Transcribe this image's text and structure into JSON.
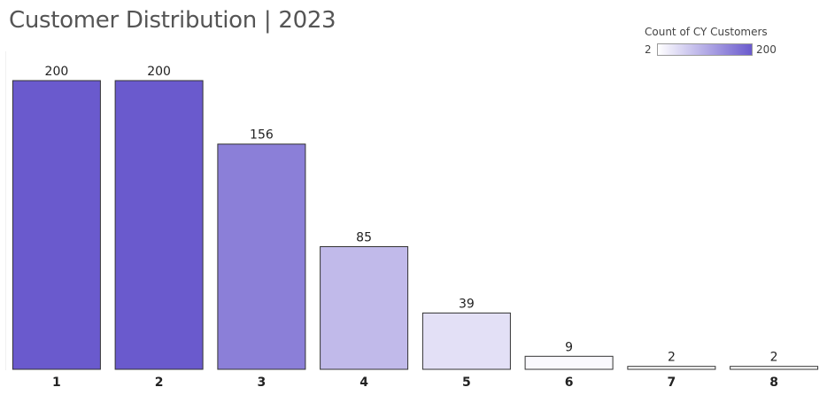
{
  "chart_data": {
    "type": "bar",
    "title": "Customer Distribution | 2023",
    "categories": [
      "1",
      "2",
      "3",
      "4",
      "5",
      "6",
      "7",
      "8"
    ],
    "values": [
      200,
      200,
      156,
      85,
      39,
      9,
      2,
      2
    ],
    "xlabel": "",
    "ylabel": "",
    "ylim": [
      0,
      200
    ],
    "grid": false,
    "legend": {
      "title": "Count of CY Customers",
      "min_label": "2",
      "max_label": "200",
      "min_value": 2,
      "max_value": 200,
      "min_color": "#ffffff",
      "max_color": "#6a5acd",
      "placement": "top-right"
    },
    "bar_outline_color": "#333333",
    "label_color": "#222222"
  }
}
